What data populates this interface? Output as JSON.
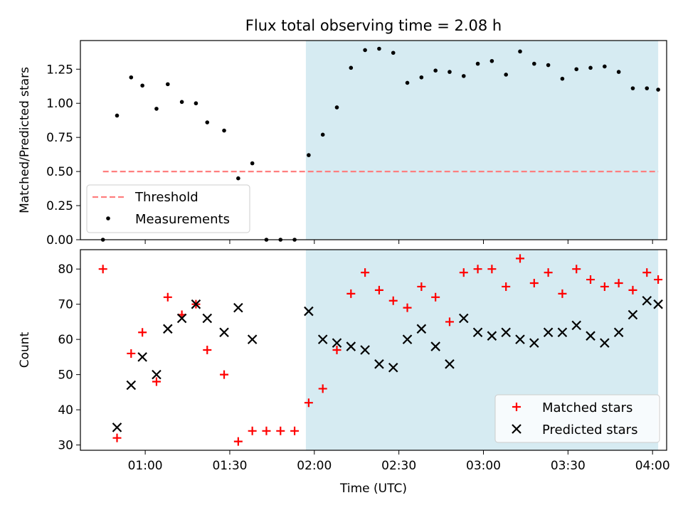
{
  "title": "Flux total observing time = 2.08 h",
  "colors": {
    "shade": "#add8e6",
    "threshold": "#ff7f7f",
    "measurements": "#000000",
    "matched": "#ff0000",
    "predicted": "#000000"
  },
  "chart_data": [
    {
      "type": "scatter",
      "ylabel": "Matched/Predicted stars",
      "ylim": [
        0,
        1.46
      ],
      "yticks": [
        "0.00",
        "0.25",
        "0.50",
        "0.75",
        "1.00",
        "1.25"
      ],
      "xlim": [
        "00:37",
        "04:05"
      ],
      "shaded_x_range": [
        "01:57",
        "04:02"
      ],
      "legend": {
        "placement": "lower-left",
        "entries": [
          "Threshold",
          "Measurements"
        ]
      },
      "threshold": {
        "name": "Threshold",
        "y": 0.5,
        "x_range": [
          "00:45",
          "04:02"
        ]
      },
      "series": [
        {
          "name": "Measurements",
          "points": [
            [
              "00:45",
              0.0
            ],
            [
              "00:50",
              0.91
            ],
            [
              "00:55",
              1.19
            ],
            [
              "00:59",
              1.13
            ],
            [
              "01:04",
              0.96
            ],
            [
              "01:08",
              1.14
            ],
            [
              "01:13",
              1.01
            ],
            [
              "01:18",
              1.0
            ],
            [
              "01:22",
              0.86
            ],
            [
              "01:28",
              0.8
            ],
            [
              "01:33",
              0.45
            ],
            [
              "01:38",
              0.56
            ],
            [
              "01:43",
              0.0
            ],
            [
              "01:48",
              0.0
            ],
            [
              "01:53",
              0.0
            ],
            [
              "01:58",
              0.62
            ],
            [
              "02:03",
              0.77
            ],
            [
              "02:08",
              0.97
            ],
            [
              "02:13",
              1.26
            ],
            [
              "02:18",
              1.39
            ],
            [
              "02:23",
              1.4
            ],
            [
              "02:28",
              1.37
            ],
            [
              "02:33",
              1.15
            ],
            [
              "02:38",
              1.19
            ],
            [
              "02:43",
              1.24
            ],
            [
              "02:48",
              1.23
            ],
            [
              "02:53",
              1.2
            ],
            [
              "02:58",
              1.29
            ],
            [
              "03:03",
              1.31
            ],
            [
              "03:08",
              1.21
            ],
            [
              "03:13",
              1.38
            ],
            [
              "03:18",
              1.29
            ],
            [
              "03:23",
              1.28
            ],
            [
              "03:28",
              1.18
            ],
            [
              "03:33",
              1.25
            ],
            [
              "03:38",
              1.26
            ],
            [
              "03:43",
              1.27
            ],
            [
              "03:48",
              1.23
            ],
            [
              "03:53",
              1.11
            ],
            [
              "03:58",
              1.11
            ],
            [
              "04:02",
              1.1
            ]
          ]
        }
      ]
    },
    {
      "type": "scatter",
      "xlabel": "Time (UTC)",
      "ylabel": "Count",
      "ylim": [
        28.5,
        85.5
      ],
      "yticks": [
        "30",
        "40",
        "50",
        "60",
        "70",
        "80"
      ],
      "xlim": [
        "00:37",
        "04:05"
      ],
      "xticks": [
        "01:00",
        "01:30",
        "02:00",
        "02:30",
        "03:00",
        "03:30",
        "04:00"
      ],
      "shaded_x_range": [
        "01:57",
        "04:02"
      ],
      "legend": {
        "placement": "lower-right",
        "entries": [
          "Matched stars",
          "Predicted stars"
        ]
      },
      "series": [
        {
          "name": "Matched stars",
          "points": [
            [
              "00:45",
              80
            ],
            [
              "00:50",
              32
            ],
            [
              "00:55",
              56
            ],
            [
              "00:59",
              62
            ],
            [
              "01:04",
              48
            ],
            [
              "01:08",
              72
            ],
            [
              "01:13",
              67
            ],
            [
              "01:18",
              70
            ],
            [
              "01:22",
              57
            ],
            [
              "01:28",
              50
            ],
            [
              "01:33",
              31
            ],
            [
              "01:38",
              34
            ],
            [
              "01:43",
              34
            ],
            [
              "01:48",
              34
            ],
            [
              "01:53",
              34
            ],
            [
              "01:58",
              42
            ],
            [
              "02:03",
              46
            ],
            [
              "02:08",
              57
            ],
            [
              "02:13",
              73
            ],
            [
              "02:18",
              79
            ],
            [
              "02:23",
              74
            ],
            [
              "02:28",
              71
            ],
            [
              "02:33",
              69
            ],
            [
              "02:38",
              75
            ],
            [
              "02:43",
              72
            ],
            [
              "02:48",
              65
            ],
            [
              "02:53",
              79
            ],
            [
              "02:58",
              80
            ],
            [
              "03:03",
              80
            ],
            [
              "03:08",
              75
            ],
            [
              "03:13",
              83
            ],
            [
              "03:18",
              76
            ],
            [
              "03:23",
              79
            ],
            [
              "03:28",
              73
            ],
            [
              "03:33",
              80
            ],
            [
              "03:38",
              77
            ],
            [
              "03:43",
              75
            ],
            [
              "03:48",
              76
            ],
            [
              "03:53",
              74
            ],
            [
              "03:58",
              79
            ],
            [
              "04:02",
              77
            ]
          ]
        },
        {
          "name": "Predicted stars",
          "points": [
            [
              "00:50",
              35
            ],
            [
              "00:55",
              47
            ],
            [
              "00:59",
              55
            ],
            [
              "01:04",
              50
            ],
            [
              "01:08",
              63
            ],
            [
              "01:13",
              66
            ],
            [
              "01:18",
              70
            ],
            [
              "01:22",
              66
            ],
            [
              "01:28",
              62
            ],
            [
              "01:33",
              69
            ],
            [
              "01:38",
              60
            ],
            [
              "01:58",
              68
            ],
            [
              "02:03",
              60
            ],
            [
              "02:08",
              59
            ],
            [
              "02:13",
              58
            ],
            [
              "02:18",
              57
            ],
            [
              "02:23",
              53
            ],
            [
              "02:28",
              52
            ],
            [
              "02:33",
              60
            ],
            [
              "02:38",
              63
            ],
            [
              "02:43",
              58
            ],
            [
              "02:48",
              53
            ],
            [
              "02:53",
              66
            ],
            [
              "02:58",
              62
            ],
            [
              "03:03",
              61
            ],
            [
              "03:08",
              62
            ],
            [
              "03:13",
              60
            ],
            [
              "03:18",
              59
            ],
            [
              "03:23",
              62
            ],
            [
              "03:28",
              62
            ],
            [
              "03:33",
              64
            ],
            [
              "03:38",
              61
            ],
            [
              "03:43",
              59
            ],
            [
              "03:48",
              62
            ],
            [
              "03:53",
              67
            ],
            [
              "03:58",
              71
            ],
            [
              "04:02",
              70
            ]
          ]
        }
      ]
    }
  ]
}
